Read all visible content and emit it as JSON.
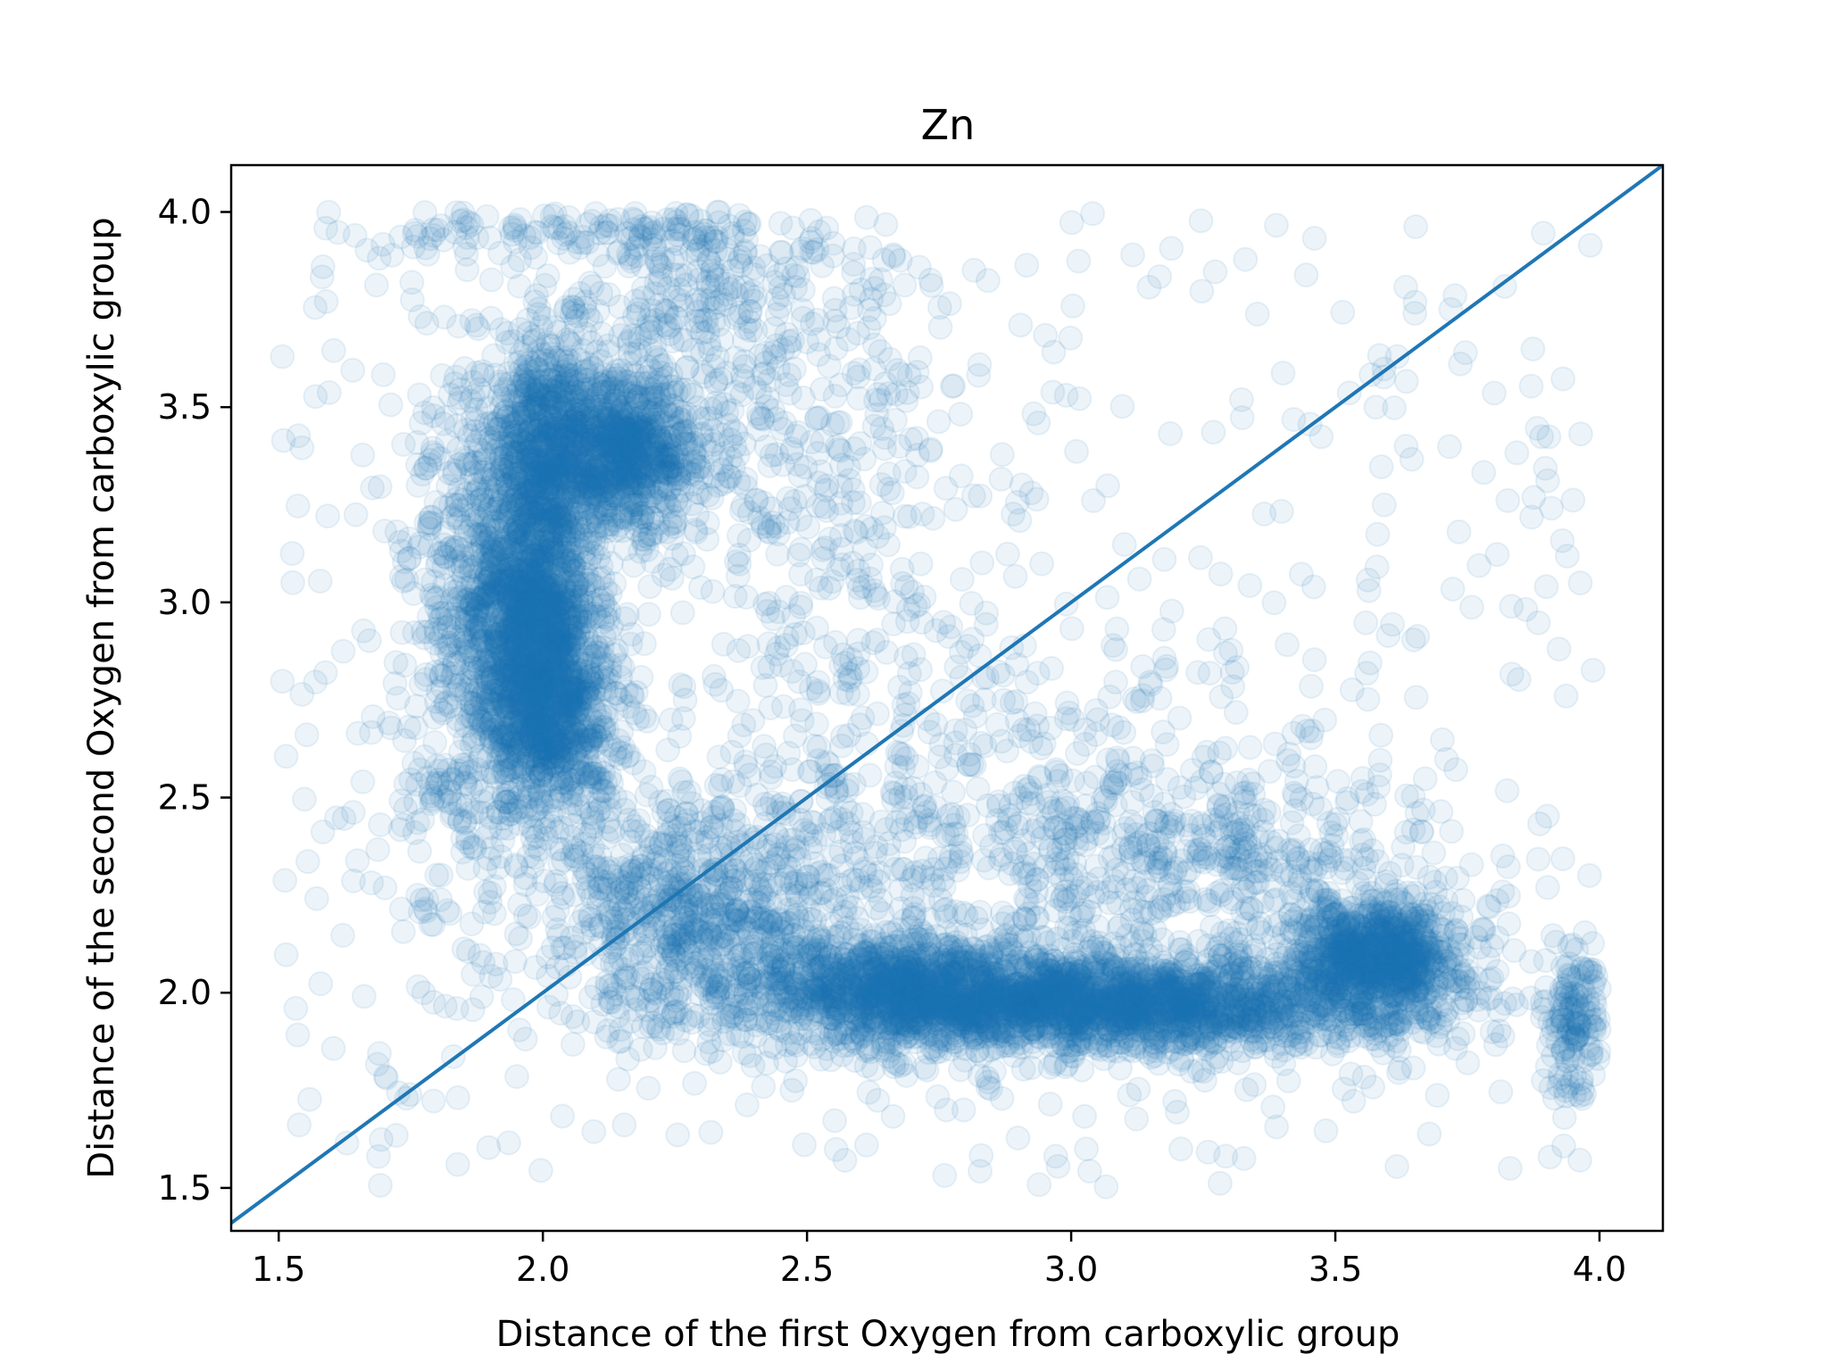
{
  "chart_data": {
    "type": "scatter",
    "title": "Zn",
    "xlabel": "Distance of the first Oxygen from carboxylic group",
    "ylabel": "Distance of the second Oxygen from carboxylic group",
    "xlim": [
      1.41,
      4.12
    ],
    "ylim": [
      1.39,
      4.12
    ],
    "xticks": [
      1.5,
      2.0,
      2.5,
      3.0,
      3.5,
      4.0
    ],
    "yticks": [
      1.5,
      2.0,
      2.5,
      3.0,
      3.5,
      4.0
    ],
    "xtick_labels": [
      "1.5",
      "2.0",
      "2.5",
      "3.0",
      "3.5",
      "4.0"
    ],
    "ytick_labels": [
      "1.5",
      "2.0",
      "2.5",
      "3.0",
      "3.5",
      "4.0"
    ],
    "grid": false,
    "marker_color": "#1f77b4",
    "marker_alpha": 0.08,
    "diagonal_line": {
      "x": [
        1.41,
        4.12
      ],
      "y": [
        1.41,
        4.12
      ],
      "color": "#1f77b4"
    },
    "density_clusters": [
      {
        "x": 1.98,
        "y": 3.0,
        "sx": 0.06,
        "sy": 0.22,
        "n": 1400
      },
      {
        "x": 2.02,
        "y": 2.72,
        "sx": 0.06,
        "sy": 0.15,
        "n": 700
      },
      {
        "x": 2.15,
        "y": 3.38,
        "sx": 0.09,
        "sy": 0.1,
        "n": 900
      },
      {
        "x": 2.0,
        "y": 3.45,
        "sx": 0.05,
        "sy": 0.12,
        "n": 400
      },
      {
        "x": 3.05,
        "y": 1.97,
        "sx": 0.3,
        "sy": 0.06,
        "n": 2200
      },
      {
        "x": 2.7,
        "y": 2.02,
        "sx": 0.15,
        "sy": 0.07,
        "n": 800
      },
      {
        "x": 3.58,
        "y": 2.1,
        "sx": 0.08,
        "sy": 0.07,
        "n": 800
      },
      {
        "x": 2.3,
        "y": 2.2,
        "sx": 0.15,
        "sy": 0.15,
        "n": 700
      },
      {
        "x": 3.95,
        "y": 1.92,
        "sx": 0.03,
        "sy": 0.1,
        "n": 150
      },
      {
        "x": 2.3,
        "y": 3.75,
        "sx": 0.2,
        "sy": 0.15,
        "n": 300
      },
      {
        "x": 2.15,
        "y": 3.95,
        "sx": 0.25,
        "sy": 0.04,
        "n": 150
      },
      {
        "x": 1.85,
        "y": 2.9,
        "sx": 0.06,
        "sy": 0.35,
        "n": 400
      },
      {
        "x": 2.9,
        "y": 2.4,
        "sx": 0.35,
        "sy": 0.25,
        "n": 600
      },
      {
        "x": 3.3,
        "y": 2.35,
        "sx": 0.2,
        "sy": 0.12,
        "n": 250
      },
      {
        "x": 2.55,
        "y": 3.2,
        "sx": 0.15,
        "sy": 0.4,
        "n": 300
      }
    ],
    "sparse_region": {
      "x": [
        1.5,
        4.0
      ],
      "y": [
        1.5,
        4.0
      ],
      "n": 600
    }
  }
}
